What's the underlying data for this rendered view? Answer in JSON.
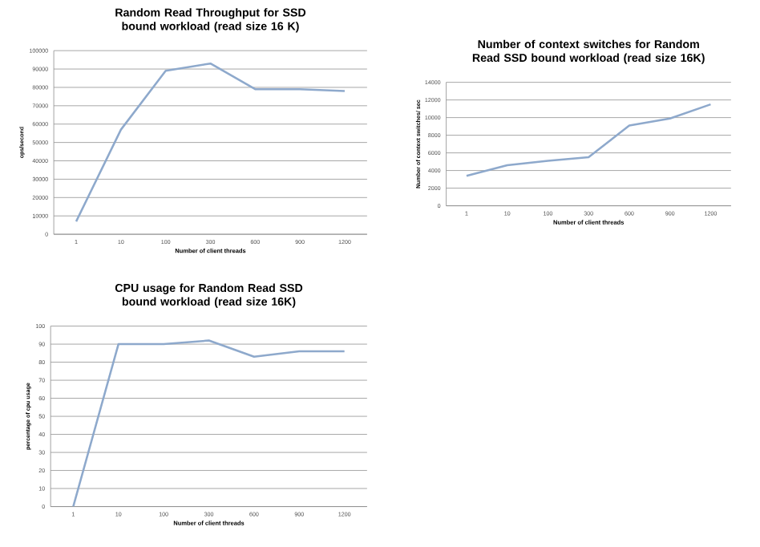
{
  "chart_data": [
    {
      "type": "line",
      "title": "Random Read Throughput for SSD bound workload (read size 16 K)",
      "xlabel": "Number of client threads",
      "ylabel": "ops/second",
      "categories": [
        "1",
        "10",
        "100",
        "300",
        "600",
        "900",
        "1200"
      ],
      "values": [
        7000,
        57000,
        89000,
        93000,
        79000,
        79000,
        78000
      ],
      "color": "#8ea9cc",
      "ylim": [
        0,
        100000
      ],
      "yticks": [
        0,
        10000,
        20000,
        30000,
        40000,
        50000,
        60000,
        70000,
        80000,
        90000,
        100000
      ],
      "grid": "y"
    },
    {
      "type": "line",
      "title": "Number of context switches for Random Read SSD bound workload (read size 16K)",
      "xlabel": "Number of client threads",
      "ylabel": "Number of context switches/ sec",
      "categories": [
        "1",
        "10",
        "100",
        "300",
        "600",
        "900",
        "1200"
      ],
      "values": [
        3400,
        4600,
        5100,
        5500,
        9100,
        9900,
        11500
      ],
      "color": "#8ea9cc",
      "ylim": [
        0,
        14000
      ],
      "yticks": [
        0,
        2000,
        4000,
        6000,
        8000,
        10000,
        12000,
        14000
      ],
      "grid": "y"
    },
    {
      "type": "line",
      "title": "CPU usage for Random Read SSD bound workload (read size 16K)",
      "xlabel": "Number of client threads",
      "ylabel": "percentage of cpu usage",
      "categories": [
        "1",
        "10",
        "100",
        "300",
        "600",
        "900",
        "1200"
      ],
      "values": [
        0,
        90,
        90,
        92,
        83,
        86,
        86
      ],
      "color": "#8ea9cc",
      "ylim": [
        0,
        100
      ],
      "yticks": [
        0,
        10,
        20,
        30,
        40,
        50,
        60,
        70,
        80,
        90,
        100
      ],
      "grid": "y"
    }
  ]
}
